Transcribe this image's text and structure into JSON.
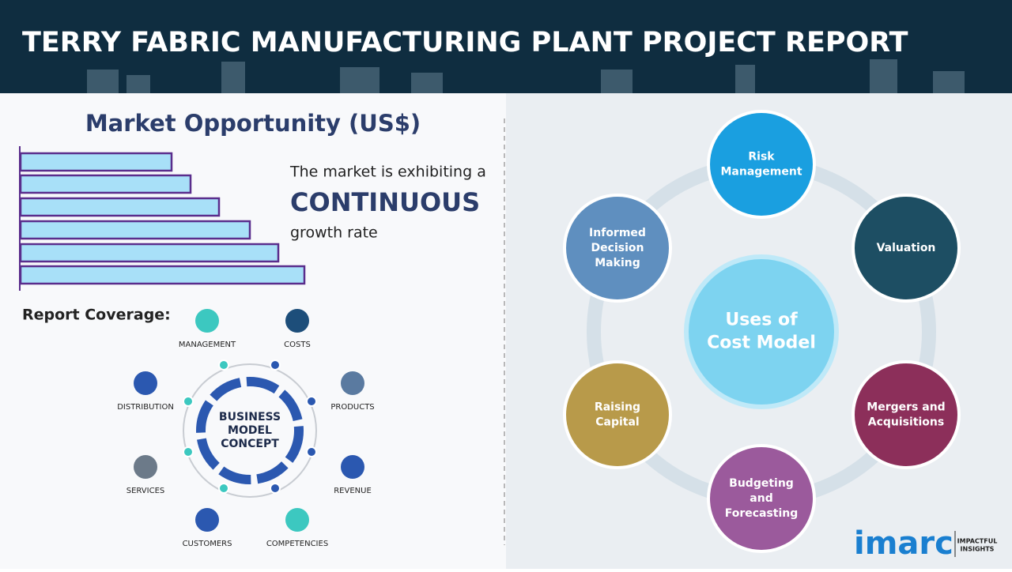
{
  "header": {
    "title": "TERRY FABRIC MANUFACTURING PLANT PROJECT REPORT"
  },
  "market": {
    "title": "Market Opportunity (US$)",
    "line1": "The market is exhibiting a",
    "emphasis": "CONTINUOUS",
    "line2": "growth rate"
  },
  "coverage": {
    "title": "Report Coverage:",
    "center": [
      "BUSINESS",
      "MODEL",
      "CONCEPT"
    ],
    "items": [
      "MANAGEMENT",
      "COSTS",
      "DISTRIBUTION",
      "PRODUCTS",
      "SERVICES",
      "REVENUE",
      "CUSTOMERS",
      "COMPETENCIES"
    ]
  },
  "cost_model": {
    "center": [
      "Uses of",
      "Cost Model"
    ],
    "nodes": [
      [
        "Risk",
        "Management"
      ],
      [
        "Valuation"
      ],
      [
        "Mergers and",
        "Acquisitions"
      ],
      [
        "Budgeting",
        "and",
        "Forecasting"
      ],
      [
        "Raising",
        "Capital"
      ],
      [
        "Informed",
        "Decision",
        "Making"
      ]
    ]
  },
  "logo": {
    "name": "imarc",
    "tagline": [
      "IMPACTFUL",
      "INSIGHTS"
    ]
  }
}
